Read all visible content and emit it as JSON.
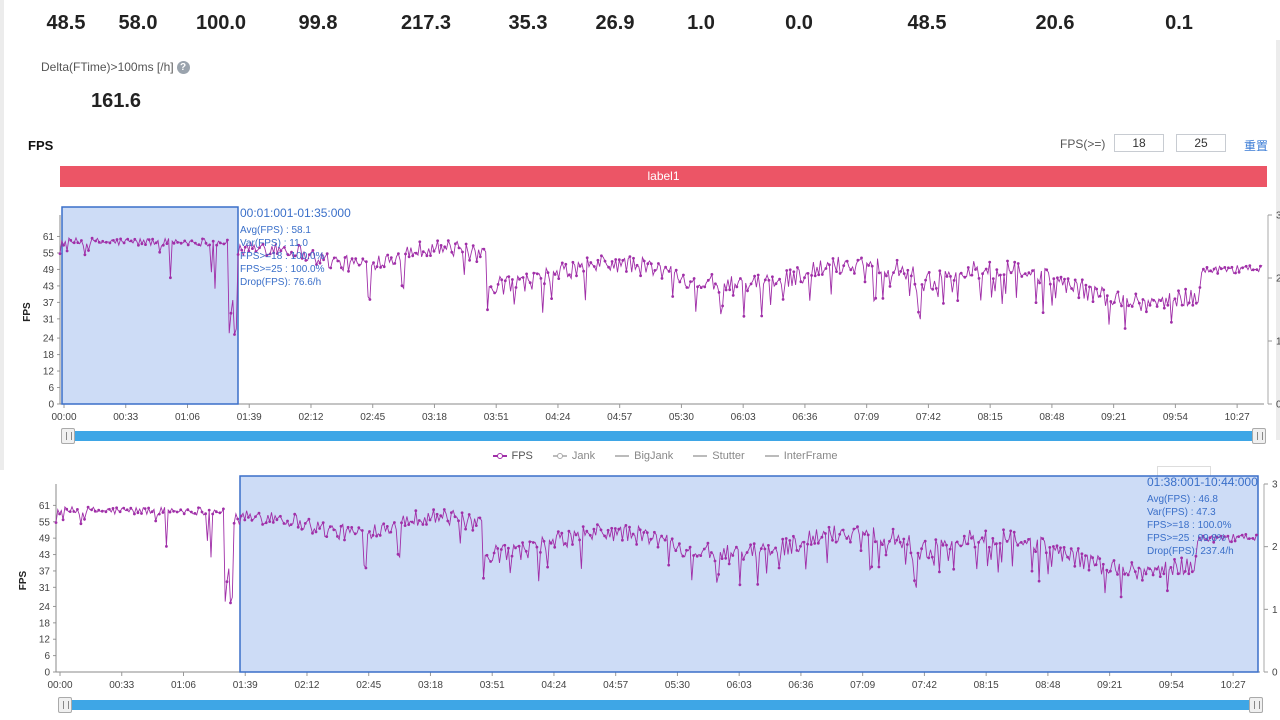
{
  "summary": {
    "values": [
      "48.5",
      "58.0",
      "100.0",
      "99.8",
      "217.3",
      "35.3",
      "26.9",
      "1.0",
      "0.0",
      "48.5",
      "20.6",
      "0.1"
    ],
    "delta_label": "Delta(FTime)>100ms [/h]",
    "delta_value": "161.6"
  },
  "fps_panel": {
    "title": "FPS",
    "threshold_label": "FPS(>=)",
    "threshold_low": "18",
    "threshold_high": "25",
    "reset_label": "重置",
    "label_bar": "label1",
    "y_axis_title": "FPS",
    "legend": [
      "FPS",
      "Jank",
      "BigJank",
      "Stutter",
      "InterFrame"
    ],
    "colors": {
      "series": "#a02fa8",
      "selection_fill": "#cddcf6",
      "selection_border": "#3a6fc9",
      "label_bar": "#ec5566",
      "slider": "#3ea6e6"
    }
  },
  "chart_data": [
    {
      "type": "line",
      "y_ticks": [
        "0",
        "6",
        "12",
        "18",
        "24",
        "31",
        "37",
        "43",
        "49",
        "55",
        "61"
      ],
      "y2_ticks": [
        "0",
        "1",
        "2",
        "3"
      ],
      "x_ticks": [
        "00:00",
        "00:33",
        "01:06",
        "01:39",
        "02:12",
        "02:45",
        "03:18",
        "03:51",
        "04:24",
        "04:57",
        "05:30",
        "06:03",
        "06:36",
        "07:09",
        "07:42",
        "08:15",
        "08:48",
        "09:21",
        "09:54",
        "10:27"
      ],
      "ylim": [
        0,
        67
      ],
      "series": [
        {
          "name": "FPS",
          "x_range_seconds": [
            0,
            676
          ],
          "approx_mean_segments": [
            {
              "from": 0,
              "to": 95,
              "mean": 59
            },
            {
              "from": 95,
              "to": 100,
              "mean": 25
            },
            {
              "from": 100,
              "to": 240,
              "mean": 54
            },
            {
              "from": 240,
              "to": 480,
              "mean": 47
            },
            {
              "from": 480,
              "to": 676,
              "mean": 43
            }
          ]
        }
      ],
      "selection": {
        "range": "00:01:001-01:35:000",
        "avg": "Avg(FPS) : 58.1",
        "var": "Var(FPS) : 11.0",
        "fps18": "FPS>=18 : 100.0%",
        "fps25": "FPS>=25 : 100.0%",
        "drop": "Drop(FPS): 76.6/h"
      }
    },
    {
      "type": "line",
      "y_ticks": [
        "0",
        "6",
        "12",
        "18",
        "24",
        "31",
        "37",
        "43",
        "49",
        "55",
        "61"
      ],
      "y2_ticks": [
        "0",
        "1",
        "2",
        "3"
      ],
      "x_ticks": [
        "00:00",
        "00:33",
        "01:06",
        "01:39",
        "02:12",
        "02:45",
        "03:18",
        "03:51",
        "04:24",
        "04:57",
        "05:30",
        "06:03",
        "06:36",
        "07:09",
        "07:42",
        "08:15",
        "08:48",
        "09:21",
        "09:54",
        "10:27"
      ],
      "ylim": [
        0,
        67
      ],
      "selection": {
        "range": "01:38:001-10:44:000",
        "avg": "Avg(FPS) : 46.8",
        "var": "Var(FPS) : 47.3",
        "fps18": "FPS>=18 : 100.0%",
        "fps25": "FPS>=25 : 99.8%",
        "drop": "Drop(FPS): 237.4/h"
      }
    }
  ]
}
